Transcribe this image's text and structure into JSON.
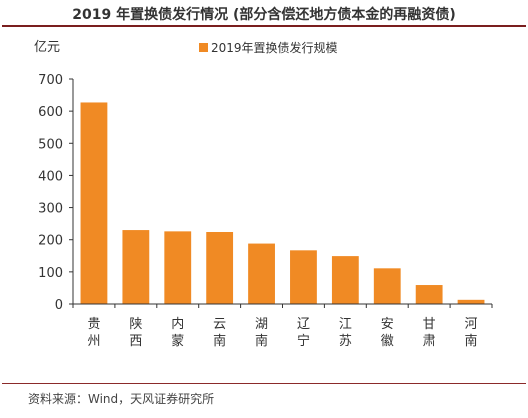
{
  "title": "2019 年置换债发行情况 (部分含偿还地方债本金的再融资债)",
  "source": "资料来源：Wind，天风证券研究所",
  "chart_data": {
    "type": "bar",
    "title": "2019 年置换债发行情况 (部分含偿还地方债本金的再融资债)",
    "ylabel": "亿元",
    "xlabel": "",
    "ylim": [
      0,
      700
    ],
    "yticks": [
      0,
      100,
      200,
      300,
      400,
      500,
      600,
      700
    ],
    "grid": false,
    "legend_position": "top-center",
    "bar_color": "#f08a24",
    "categories": [
      "贵州",
      "陕西",
      "内蒙",
      "云南",
      "湖南",
      "辽宁",
      "江苏",
      "安徽",
      "甘肃",
      "河南"
    ],
    "series": [
      {
        "name": "2019年置换债发行规模",
        "values": [
          627,
          230,
          226,
          224,
          188,
          167,
          149,
          111,
          59,
          13
        ]
      }
    ]
  }
}
